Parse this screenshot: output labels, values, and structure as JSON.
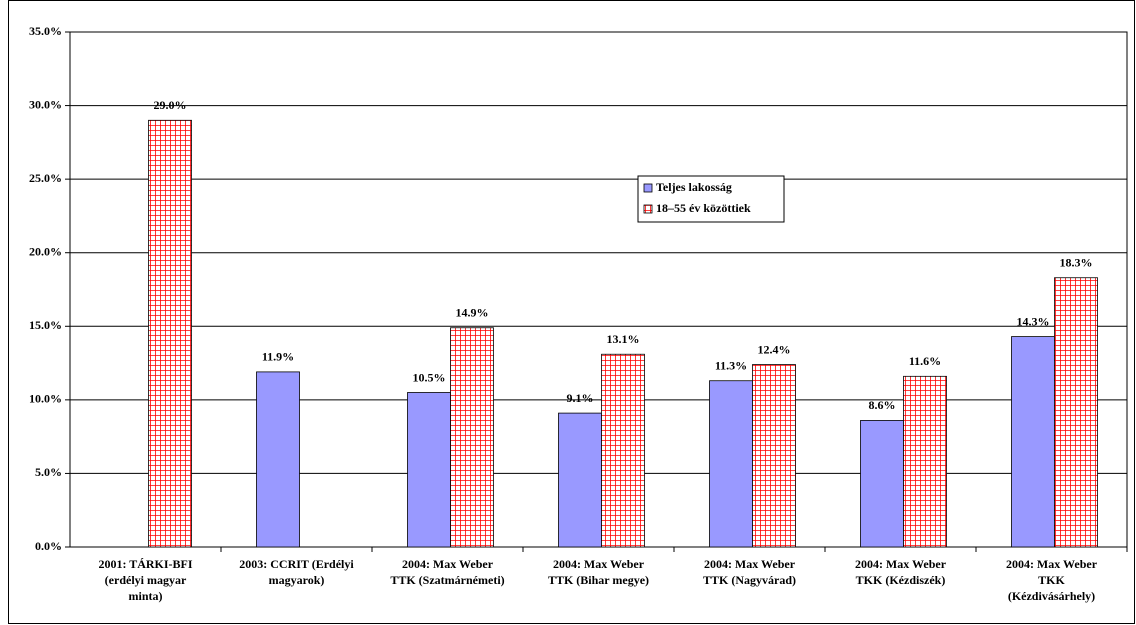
{
  "chart_data": {
    "type": "bar",
    "categories": [
      [
        "2001: TÁRKI-BFI",
        "(erdélyi magyar",
        "minta)"
      ],
      [
        "2003: CCRIT (Erdélyi",
        "magyarok)"
      ],
      [
        "2004: Max Weber",
        "TTK (Szatmárnémeti)"
      ],
      [
        "2004: Max Weber",
        "TTK (Bihar megye)"
      ],
      [
        "2004: Max Weber",
        "TTK (Nagyvárad)"
      ],
      [
        "2004: Max Weber",
        "TKK (Kézdiszék)"
      ],
      [
        "2004: Max Weber",
        "TKK",
        "(Kézdivásárhely)"
      ]
    ],
    "series": [
      {
        "name": "Teljes lakosság",
        "color": "#9999ff",
        "values": [
          null,
          11.9,
          10.5,
          9.1,
          11.3,
          8.6,
          14.3
        ],
        "value_labels": [
          null,
          "11.9%",
          "10.5%",
          "9.1%",
          "11.3%",
          "8.6%",
          "14.3%"
        ]
      },
      {
        "name": "18–55 év közöttiek",
        "color": "#ff0000",
        "values": [
          29.0,
          null,
          14.9,
          13.1,
          12.4,
          11.6,
          18.3
        ],
        "value_labels": [
          "29.0%",
          null,
          "14.9%",
          "13.1%",
          "12.4%",
          "11.6%",
          "18.3%"
        ]
      }
    ],
    "ylim": [
      0,
      35
    ],
    "yticks": [
      {
        "value": 0,
        "label": "0.0%"
      },
      {
        "value": 5,
        "label": "5.0%"
      },
      {
        "value": 10,
        "label": "10.0%"
      },
      {
        "value": 15,
        "label": "15.0%"
      },
      {
        "value": 20,
        "label": "20.0%"
      },
      {
        "value": 25,
        "label": "25.0%"
      },
      {
        "value": 30,
        "label": "30.0%"
      },
      {
        "value": 35,
        "label": "35.0%"
      }
    ],
    "grid": true
  }
}
